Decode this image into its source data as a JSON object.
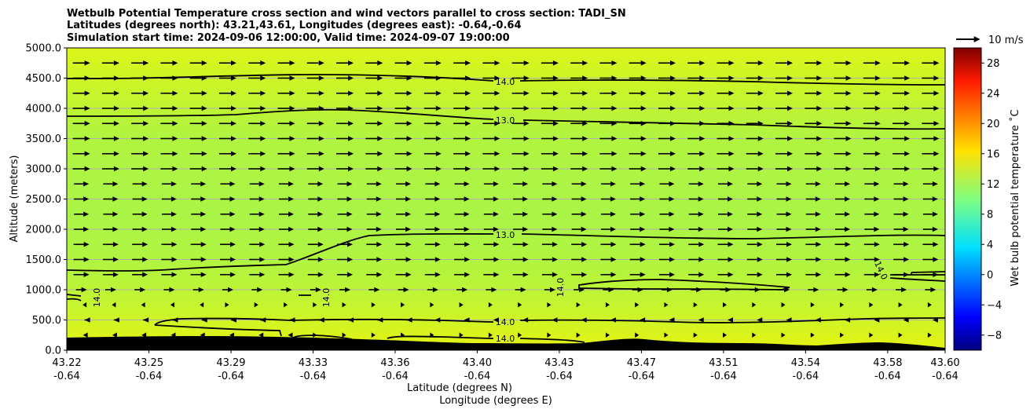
{
  "chart_data": {
    "type": "heatmap",
    "title_lines": [
      "Wetbulb Potential Temperature cross section and wind vectors parallel to cross section: TADI_SN",
      "Latitudes (degrees north): 43.21,43.61, Longitudes (degrees east): -0.64,-0.64",
      "Simulation start time: 2024-09-06 12:00:00, Valid time: 2024-09-07 19:00:00"
    ],
    "xlabel_line1": "Latitude (degrees N)",
    "xlabel_line2": "Longitude (degrees E)",
    "ylabel": "Altitude (meters)",
    "colorbar_label": "Wet bulb potential temperature $^\\circ$C",
    "colorbar_label_text": "Wet bulb potential temperature ˚C",
    "colorbar_range": [
      -10,
      30
    ],
    "colorbar_ticks": [
      "−8",
      "−4",
      "0",
      "4",
      "8",
      "12",
      "16",
      "20",
      "24",
      "28"
    ],
    "colorbar_tick_values": [
      -8,
      -4,
      0,
      4,
      8,
      12,
      16,
      20,
      24,
      28
    ],
    "colormap": "jet",
    "ylim": [
      0,
      5000
    ],
    "y_ticks": [
      "0.0",
      "500.0",
      "1000.0",
      "1500.0",
      "2000.0",
      "2500.0",
      "3000.0",
      "3500.0",
      "4000.0",
      "4500.0",
      "5000.0"
    ],
    "y_tick_values": [
      0,
      500,
      1000,
      1500,
      2000,
      2500,
      3000,
      3500,
      4000,
      4500,
      5000
    ],
    "x_ticks_lat": [
      "43.22",
      "43.25",
      "43.29",
      "43.33",
      "43.36",
      "43.40",
      "43.43",
      "43.47",
      "43.51",
      "43.54",
      "43.58",
      "43.60"
    ],
    "x_ticks_lon": [
      "-0.64",
      "-0.64",
      "-0.64",
      "-0.64",
      "-0.64",
      "-0.64",
      "-0.64",
      "-0.64",
      "-0.64",
      "-0.64",
      "-0.64",
      "-0.64"
    ],
    "x_tick_positions": [
      0,
      1,
      2,
      3,
      4,
      5,
      6,
      7,
      8,
      9,
      10,
      10.7
    ],
    "xlim": [
      0,
      10.7
    ],
    "wind_key_label": "10 m/s",
    "contour_labels": [
      "14.0",
      "13.0",
      "13.0",
      "14.0",
      "14.0",
      "14.0",
      "14.0",
      "14.0",
      "14.0"
    ],
    "terrain_color": "#000000",
    "field_colors": {
      "upper": "#dcf51a",
      "mid": "#aef543",
      "low": "#c6f52e",
      "surface": "#e4f212"
    }
  }
}
